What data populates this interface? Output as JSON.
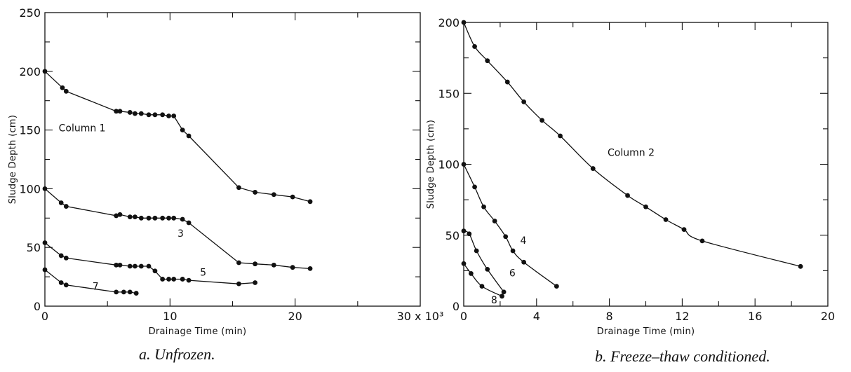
{
  "chart_data": [
    {
      "type": "line",
      "caption": "a. Unfrozen.",
      "xlabel": "Drainage Time (min)",
      "ylabel": "Sludge Depth (cm)",
      "xlim": [
        0,
        30000
      ],
      "ylim": [
        0,
        250
      ],
      "x_ticks": [
        0,
        10000,
        20000,
        30000
      ],
      "x_tick_labels": [
        "0",
        "10",
        "20",
        "30 x 10³"
      ],
      "y_ticks": [
        0,
        50,
        100,
        150,
        200,
        250
      ],
      "y_tick_labels": [
        "0",
        "50",
        "100",
        "150",
        "200",
        "250"
      ],
      "grid": false,
      "series": [
        {
          "name": "Column 1",
          "label": "Column 1",
          "x": [
            0,
            1400,
            1700,
            5700,
            6000,
            6800,
            7200,
            7700,
            8300,
            8800,
            9400,
            9900,
            10300,
            11000,
            11500,
            15500,
            16800,
            18300,
            19800,
            21200
          ],
          "y": [
            200,
            186,
            183,
            166,
            166,
            165,
            164,
            164,
            163,
            163,
            163,
            162,
            162,
            150,
            145,
            101,
            97,
            95,
            93,
            89
          ]
        },
        {
          "name": "3",
          "label": "3",
          "x": [
            0,
            1300,
            1700,
            5700,
            6000,
            6800,
            7200,
            7700,
            8300,
            8800,
            9400,
            9900,
            10300,
            11000,
            11500,
            15500,
            16800,
            18300,
            19800,
            21200
          ],
          "y": [
            100,
            88,
            85,
            77,
            78,
            76,
            76,
            75,
            75,
            75,
            75,
            75,
            75,
            74,
            71,
            37,
            36,
            35,
            33,
            32
          ]
        },
        {
          "name": "5",
          "label": "5",
          "x": [
            0,
            1300,
            1700,
            5700,
            6000,
            6800,
            7200,
            7700,
            8300,
            8800,
            9400,
            9900,
            10300,
            11000,
            11500,
            15500,
            16800
          ],
          "y": [
            54,
            43,
            41,
            35,
            35,
            34,
            34,
            34,
            34,
            30,
            23,
            23,
            23,
            23,
            22,
            19,
            20
          ]
        },
        {
          "name": "7",
          "label": "7",
          "x": [
            0,
            1300,
            1700,
            5700,
            6300,
            6800,
            7300
          ],
          "y": [
            31,
            20,
            18,
            12,
            12,
            12,
            11
          ]
        }
      ]
    },
    {
      "type": "line",
      "caption": "b. Freeze–thaw conditioned.",
      "xlabel": "Drainage Time (min)",
      "ylabel": "Sludge Depth (cm)",
      "xlim": [
        0,
        20
      ],
      "ylim": [
        0,
        200
      ],
      "x_ticks": [
        0,
        4,
        8,
        12,
        16,
        20
      ],
      "x_tick_labels": [
        "0",
        "4",
        "8",
        "12",
        "16",
        "20"
      ],
      "y_ticks": [
        0,
        50,
        100,
        150,
        200
      ],
      "y_tick_labels": [
        "0",
        "50",
        "100",
        "150",
        "200"
      ],
      "grid": false,
      "series": [
        {
          "name": "Column 2",
          "label": "Column 2",
          "x": [
            0,
            0.6,
            1.3,
            2.4,
            3.3,
            4.3,
            5.3,
            7.1,
            9.0,
            10.0,
            11.1,
            12.1,
            13.1,
            18.5
          ],
          "y": [
            200,
            183,
            173,
            158,
            144,
            131,
            120,
            97,
            78,
            70,
            61,
            54,
            46,
            28
          ]
        },
        {
          "name": "4",
          "label": "4",
          "x": [
            0,
            0.6,
            1.1,
            1.7,
            2.3,
            2.7,
            3.3,
            5.1
          ],
          "y": [
            100,
            84,
            70,
            60,
            49,
            39,
            31,
            14
          ]
        },
        {
          "name": "6",
          "label": "6",
          "x": [
            0,
            0.3,
            0.7,
            1.3,
            2.2
          ],
          "y": [
            53,
            51,
            39,
            26,
            10
          ]
        },
        {
          "name": "8",
          "label": "8",
          "x": [
            0,
            0.4,
            1.0,
            2.1
          ],
          "y": [
            30,
            23,
            14,
            7
          ]
        }
      ]
    }
  ]
}
